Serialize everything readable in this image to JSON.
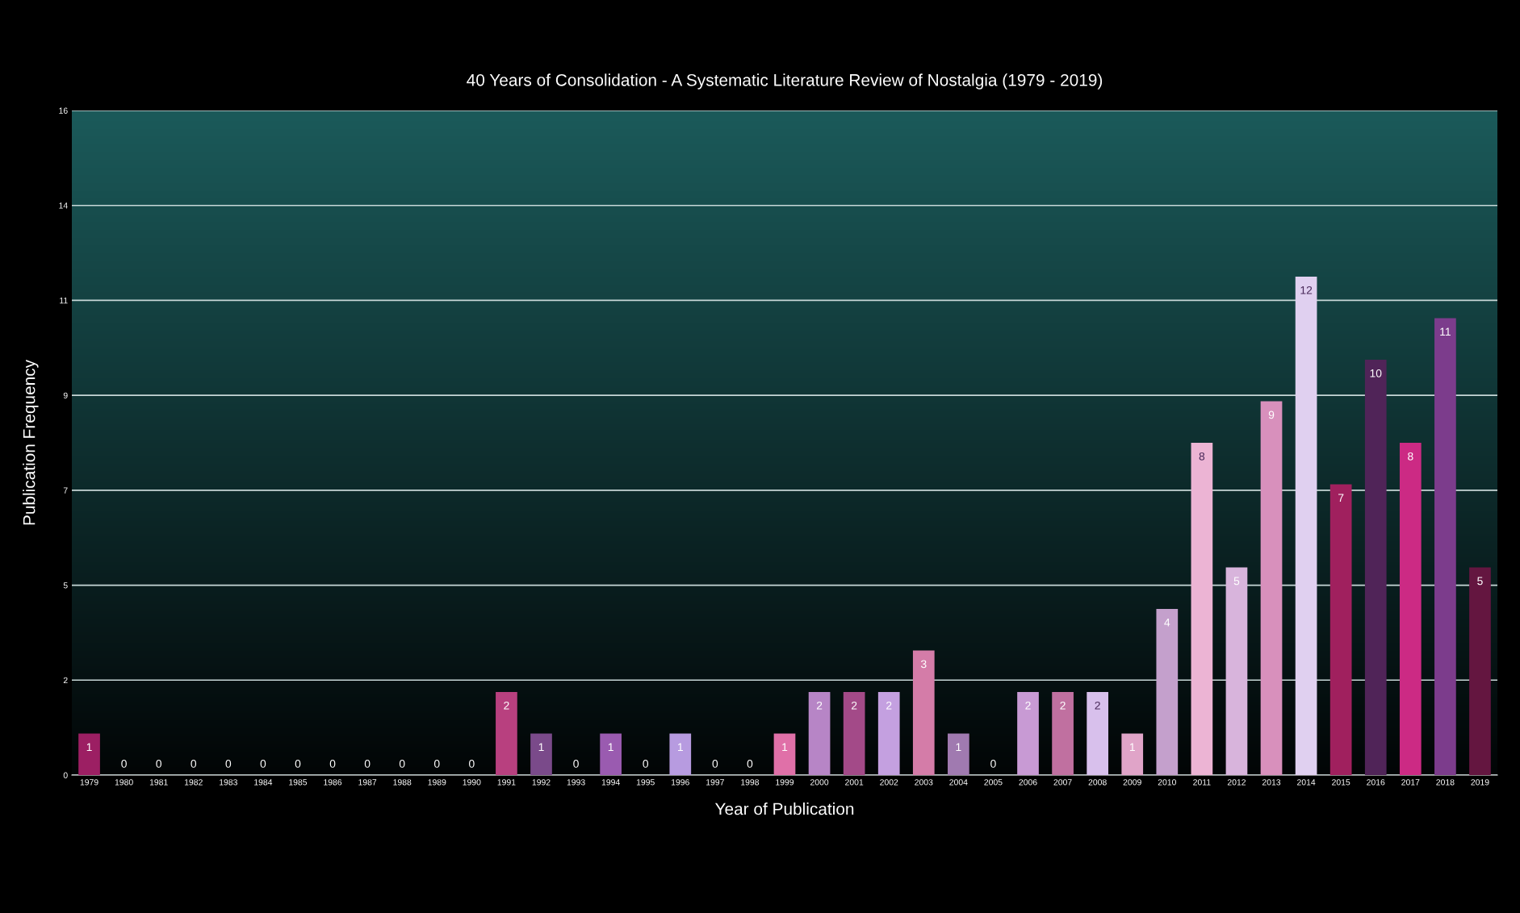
{
  "chart_data": {
    "type": "bar",
    "title": "40 Years of Consolidation - A Systematic Literature Review of Nostalgia (1979 - 2019)",
    "xlabel": "Year of Publication",
    "ylabel": "Publication Frequency",
    "categories": [
      "1979",
      "1980",
      "1981",
      "1982",
      "1983",
      "1984",
      "1985",
      "1986",
      "1987",
      "1988",
      "1989",
      "1990",
      "1991",
      "1992",
      "1993",
      "1994",
      "1995",
      "1996",
      "1997",
      "1998",
      "1999",
      "2000",
      "2001",
      "2002",
      "2003",
      "2004",
      "2005",
      "2006",
      "2007",
      "2008",
      "2009",
      "2010",
      "2011",
      "2012",
      "2013",
      "2014",
      "2015",
      "2016",
      "2017",
      "2018",
      "2019"
    ],
    "values": [
      1,
      0,
      0,
      0,
      0,
      0,
      0,
      0,
      0,
      0,
      0,
      0,
      2,
      1,
      0,
      1,
      0,
      1,
      0,
      0,
      1,
      2,
      2,
      2,
      3,
      1,
      0,
      2,
      2,
      2,
      1,
      4,
      8,
      5,
      9,
      12,
      7,
      10,
      8,
      11,
      5
    ],
    "colors": [
      "#9c1f63",
      "#9c1f63",
      "#9c1f63",
      "#9c1f63",
      "#9c1f63",
      "#9c1f63",
      "#9c1f63",
      "#9c1f63",
      "#9c1f63",
      "#9c1f63",
      "#9c1f63",
      "#9c1f63",
      "#b8407f",
      "#7a4a8a",
      "#9c1f63",
      "#9a5bb0",
      "#9c1f63",
      "#b79be0",
      "#9c1f63",
      "#9c1f63",
      "#e070a8",
      "#b785c6",
      "#a34a88",
      "#c4a0e0",
      "#d47ca8",
      "#a07ab0",
      "#9c1f63",
      "#c89ad4",
      "#c070a0",
      "#d8c0ec",
      "#e0a4c8",
      "#c4a0cc",
      "#ecb4d4",
      "#d8b4dc",
      "#d890bc",
      "#e0d0f0",
      "#a0205e",
      "#502458",
      "#cc2a84",
      "#7c3c8c",
      "#641640"
    ],
    "ylim": [
      0,
      16
    ],
    "yticks": [
      0,
      {
        "value": 2.2857,
        "label": "2"
      },
      {
        "value": 4.5714,
        "label": "5"
      },
      {
        "value": 6.8571,
        "label": "7"
      },
      {
        "value": 9.1429,
        "label": "9"
      },
      {
        "value": 11.4286,
        "label": "11"
      },
      {
        "value": 13.7143,
        "label": "14"
      },
      16
    ],
    "grid": "y",
    "data_labels": true
  }
}
